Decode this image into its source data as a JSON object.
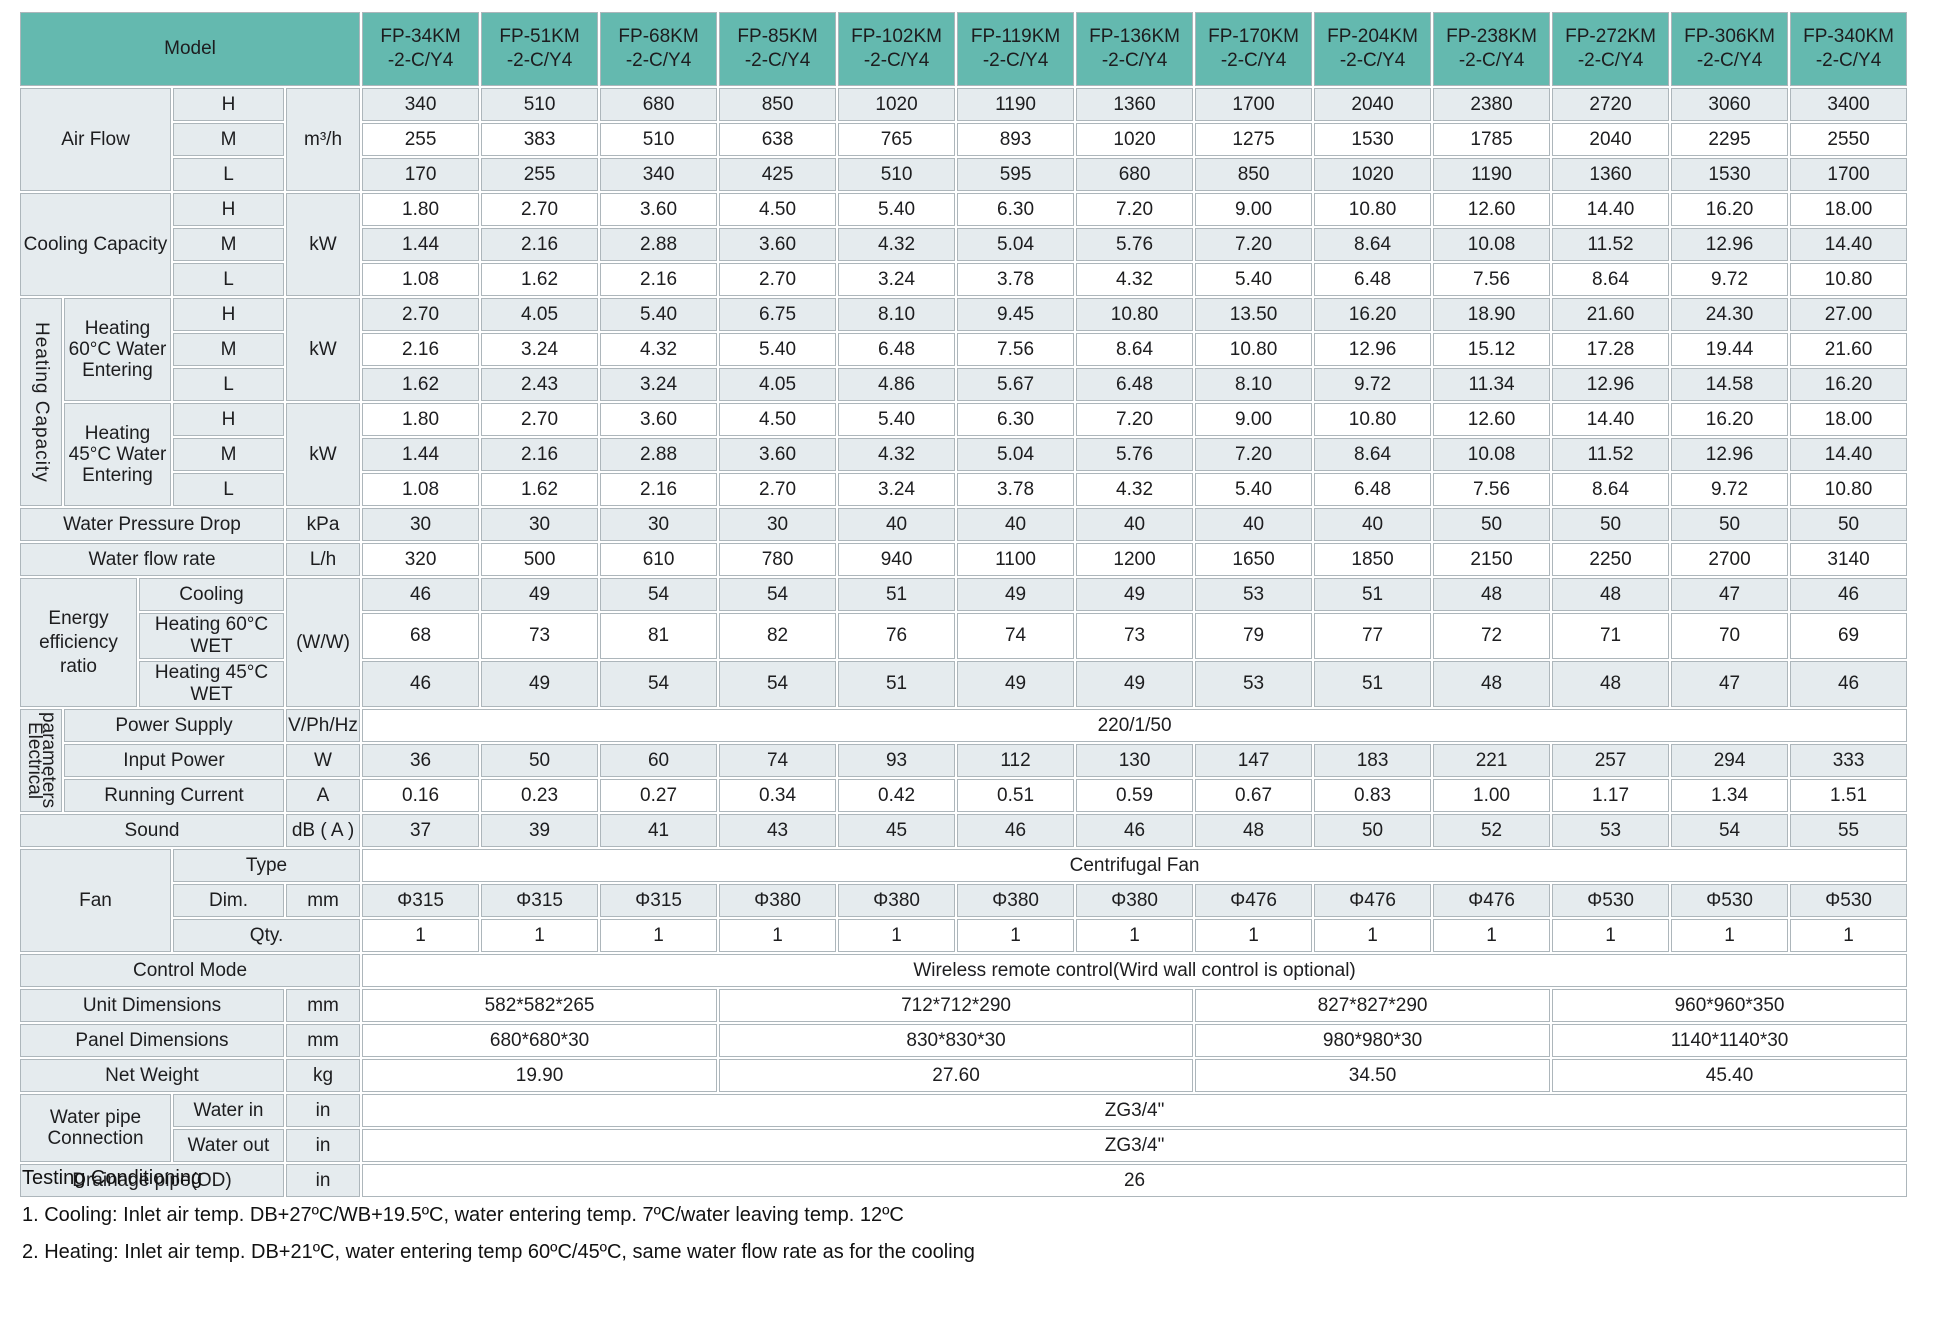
{
  "colors": {
    "header_teal": "#64b9af",
    "row_light": "#e5ebee",
    "row_white": "#ffffff",
    "grid_line": "#adb6bb",
    "text": "#1d1d1f"
  },
  "header": {
    "model_label": "Model",
    "model_suffix": "-2-C/Y4",
    "models": [
      "FP-34KM",
      "FP-51KM",
      "FP-68KM",
      "FP-85KM",
      "FP-102KM",
      "FP-119KM",
      "FP-136KM",
      "FP-170KM",
      "FP-204KM",
      "FP-238KM",
      "FP-272KM",
      "FP-306KM",
      "FP-340KM"
    ]
  },
  "rows": [
    {
      "bg": "a",
      "cells": [
        {
          "t": "Air Flow",
          "cs": 3,
          "rs": 3,
          "c": "lbl",
          "n": "air-flow-label"
        },
        {
          "t": "H",
          "c": "lbl"
        },
        {
          "t": "m³/h",
          "rs": 3,
          "c": "unit"
        },
        {
          "v": [
            "340",
            "510",
            "680",
            "850",
            "1020",
            "1190",
            "1360",
            "1700",
            "2040",
            "2380",
            "2720",
            "3060",
            "3400"
          ]
        }
      ]
    },
    {
      "bg": "b",
      "cells": [
        {
          "t": "M",
          "c": "lbl"
        },
        {
          "v": [
            "255",
            "383",
            "510",
            "638",
            "765",
            "893",
            "1020",
            "1275",
            "1530",
            "1785",
            "2040",
            "2295",
            "2550"
          ]
        }
      ]
    },
    {
      "bg": "a",
      "cells": [
        {
          "t": "L",
          "c": "lbl"
        },
        {
          "v": [
            "170",
            "255",
            "340",
            "425",
            "510",
            "595",
            "680",
            "850",
            "1020",
            "1190",
            "1360",
            "1530",
            "1700"
          ]
        }
      ]
    },
    {
      "bg": "b",
      "cells": [
        {
          "t": "Cooling Capacity",
          "cs": 3,
          "rs": 3,
          "c": "lbl lh",
          "n": "cooling-capacity-label"
        },
        {
          "t": "H",
          "c": "lbl"
        },
        {
          "t": "kW",
          "rs": 3,
          "c": "unit"
        },
        {
          "v": [
            "1.80",
            "2.70",
            "3.60",
            "4.50",
            "5.40",
            "6.30",
            "7.20",
            "9.00",
            "10.80",
            "12.60",
            "14.40",
            "16.20",
            "18.00"
          ]
        }
      ]
    },
    {
      "bg": "a",
      "cells": [
        {
          "t": "M",
          "c": "lbl"
        },
        {
          "v": [
            "1.44",
            "2.16",
            "2.88",
            "3.60",
            "4.32",
            "5.04",
            "5.76",
            "7.20",
            "8.64",
            "10.08",
            "11.52",
            "12.96",
            "14.40"
          ]
        }
      ]
    },
    {
      "bg": "b",
      "cells": [
        {
          "t": "L",
          "c": "lbl"
        },
        {
          "v": [
            "1.08",
            "1.62",
            "2.16",
            "2.70",
            "3.24",
            "3.78",
            "4.32",
            "5.40",
            "6.48",
            "7.56",
            "8.64",
            "9.72",
            "10.80"
          ]
        }
      ]
    },
    {
      "bg": "a",
      "cells": [
        {
          "t": "Heating Capacity",
          "rs": 6,
          "c": "lbl vertH",
          "n": "heating-capacity-vertical-label"
        },
        {
          "t": "Heating 60°C Water Entering",
          "cs": 2,
          "rs": 3,
          "c": "lbl lf wr",
          "n": "heating-60-label"
        },
        {
          "t": "H",
          "c": "lbl"
        },
        {
          "t": "kW",
          "rs": 3,
          "c": "unit"
        },
        {
          "v": [
            "2.70",
            "4.05",
            "5.40",
            "6.75",
            "8.10",
            "9.45",
            "10.80",
            "13.50",
            "16.20",
            "18.90",
            "21.60",
            "24.30",
            "27.00"
          ]
        }
      ]
    },
    {
      "bg": "b",
      "cells": [
        {
          "t": "M",
          "c": "lbl"
        },
        {
          "v": [
            "2.16",
            "3.24",
            "4.32",
            "5.40",
            "6.48",
            "7.56",
            "8.64",
            "10.80",
            "12.96",
            "15.12",
            "17.28",
            "19.44",
            "21.60"
          ]
        }
      ]
    },
    {
      "bg": "a",
      "cells": [
        {
          "t": "L",
          "c": "lbl"
        },
        {
          "v": [
            "1.62",
            "2.43",
            "3.24",
            "4.05",
            "4.86",
            "5.67",
            "6.48",
            "8.10",
            "9.72",
            "11.34",
            "12.96",
            "14.58",
            "16.20"
          ]
        }
      ]
    },
    {
      "bg": "b",
      "cells": [
        {
          "t": "Heating 45°C Water Entering",
          "cs": 2,
          "rs": 3,
          "c": "lbl lf wr",
          "n": "heating-45-label"
        },
        {
          "t": "H",
          "c": "lbl"
        },
        {
          "t": "kW",
          "rs": 3,
          "c": "unit"
        },
        {
          "v": [
            "1.80",
            "2.70",
            "3.60",
            "4.50",
            "5.40",
            "6.30",
            "7.20",
            "9.00",
            "10.80",
            "12.60",
            "14.40",
            "16.20",
            "18.00"
          ]
        }
      ]
    },
    {
      "bg": "a",
      "cells": [
        {
          "t": "M",
          "c": "lbl"
        },
        {
          "v": [
            "1.44",
            "2.16",
            "2.88",
            "3.60",
            "4.32",
            "5.04",
            "5.76",
            "7.20",
            "8.64",
            "10.08",
            "11.52",
            "12.96",
            "14.40"
          ]
        }
      ]
    },
    {
      "bg": "b",
      "cells": [
        {
          "t": "L",
          "c": "lbl"
        },
        {
          "v": [
            "1.08",
            "1.62",
            "2.16",
            "2.70",
            "3.24",
            "3.78",
            "4.32",
            "5.40",
            "6.48",
            "7.56",
            "8.64",
            "9.72",
            "10.80"
          ]
        }
      ]
    },
    {
      "bg": "a",
      "cells": [
        {
          "t": "Water Pressure Drop",
          "cs": 4,
          "c": "lbl",
          "n": "water-pressure-drop-label"
        },
        {
          "t": "kPa",
          "c": "unit"
        },
        {
          "v": [
            "30",
            "30",
            "30",
            "30",
            "40",
            "40",
            "40",
            "40",
            "40",
            "50",
            "50",
            "50",
            "50"
          ]
        }
      ]
    },
    {
      "bg": "b",
      "cells": [
        {
          "t": "Water flow rate",
          "cs": 4,
          "c": "lbl",
          "n": "water-flow-rate-label"
        },
        {
          "t": "L/h",
          "c": "unit"
        },
        {
          "v": [
            "320",
            "500",
            "610",
            "780",
            "940",
            "1100",
            "1200",
            "1650",
            "1850",
            "2150",
            "2250",
            "2700",
            "3140"
          ]
        }
      ]
    },
    {
      "bg": "a",
      "cells": [
        {
          "t": "Energy efficiency ratio",
          "cs": 2,
          "rs": 3,
          "c": "lbl lf lh",
          "n": "energy-efficiency-label"
        },
        {
          "t": "Cooling",
          "cs": 2,
          "c": "lbl lf sm"
        },
        {
          "t": "(W/W)",
          "rs": 3,
          "c": "unit"
        },
        {
          "v": [
            "46",
            "49",
            "54",
            "54",
            "51",
            "49",
            "49",
            "53",
            "51",
            "48",
            "48",
            "47",
            "46"
          ]
        }
      ]
    },
    {
      "bg": "b",
      "cells": [
        {
          "t": "Heating 60°C WET",
          "cs": 2,
          "c": "lbl lf sm"
        },
        {
          "v": [
            "68",
            "73",
            "81",
            "82",
            "76",
            "74",
            "73",
            "79",
            "77",
            "72",
            "71",
            "70",
            "69"
          ]
        }
      ]
    },
    {
      "bg": "a",
      "cells": [
        {
          "t": "Heating 45°C WET",
          "cs": 2,
          "c": "lbl lf sm"
        },
        {
          "v": [
            "46",
            "49",
            "54",
            "54",
            "51",
            "49",
            "49",
            "53",
            "51",
            "48",
            "48",
            "47",
            "46"
          ]
        }
      ]
    },
    {
      "bg": "b",
      "cells": [
        {
          "t": "Electrical parameters",
          "rs": 3,
          "c": "lbl vertE",
          "n": "electrical-parameters-vertical-label"
        },
        {
          "t": "Power Supply",
          "cs": 3,
          "c": "lbl lf",
          "n": "power-supply-label"
        },
        {
          "t": "V/Ph/Hz",
          "c": "unit sm"
        },
        {
          "t": "220/1/50",
          "cs": 13,
          "c": "val"
        }
      ]
    },
    {
      "bg": "a",
      "cells": [
        {
          "t": "Input Power",
          "cs": 3,
          "c": "lbl lf",
          "n": "input-power-label"
        },
        {
          "t": "W",
          "c": "unit"
        },
        {
          "v": [
            "36",
            "50",
            "60",
            "74",
            "93",
            "112",
            "130",
            "147",
            "183",
            "221",
            "257",
            "294",
            "333"
          ]
        }
      ]
    },
    {
      "bg": "b",
      "cells": [
        {
          "t": "Running Current",
          "cs": 3,
          "c": "lbl lf",
          "n": "running-current-label"
        },
        {
          "t": "A",
          "c": "unit"
        },
        {
          "v": [
            "0.16",
            "0.23",
            "0.27",
            "0.34",
            "0.42",
            "0.51",
            "0.59",
            "0.67",
            "0.83",
            "1.00",
            "1.17",
            "1.34",
            "1.51"
          ]
        }
      ]
    },
    {
      "bg": "a",
      "cells": [
        {
          "t": "Sound",
          "cs": 4,
          "c": "lbl",
          "n": "sound-label"
        },
        {
          "t": "dB ( A )",
          "c": "unit md"
        },
        {
          "v": [
            "37",
            "39",
            "41",
            "43",
            "45",
            "46",
            "46",
            "48",
            "50",
            "52",
            "53",
            "54",
            "55"
          ]
        }
      ]
    },
    {
      "bg": "b",
      "cells": [
        {
          "t": "Fan",
          "cs": 3,
          "rs": 3,
          "c": "lbl",
          "n": "fan-label"
        },
        {
          "t": "Type",
          "cs": 2,
          "c": "lbl"
        },
        {
          "t": "Centrifugal Fan",
          "cs": 13,
          "c": "val"
        }
      ]
    },
    {
      "bg": "a",
      "cells": [
        {
          "t": "Dim.",
          "c": "lbl"
        },
        {
          "t": "mm",
          "c": "unit"
        },
        {
          "v": [
            "Φ315",
            "Φ315",
            "Φ315",
            "Φ380",
            "Φ380",
            "Φ380",
            "Φ380",
            "Φ476",
            "Φ476",
            "Φ476",
            "Φ530",
            "Φ530",
            "Φ530"
          ]
        }
      ]
    },
    {
      "bg": "b",
      "cells": [
        {
          "t": "Qty.",
          "cs": 2,
          "c": "lbl"
        },
        {
          "v": [
            "1",
            "1",
            "1",
            "1",
            "1",
            "1",
            "1",
            "1",
            "1",
            "1",
            "1",
            "1",
            "1"
          ]
        }
      ]
    },
    {
      "bg": "a",
      "cells": [
        {
          "t": "Control Mode",
          "cs": 5,
          "c": "lbl",
          "n": "control-mode-label"
        },
        {
          "t": "Wireless remote control(Wird wall control is optional)",
          "cs": 13,
          "c": "val"
        }
      ]
    },
    {
      "bg": "b",
      "cells": [
        {
          "t": "Unit Dimensions",
          "cs": 4,
          "c": "lbl",
          "n": "unit-dimensions-label"
        },
        {
          "t": "mm",
          "c": "unit"
        },
        {
          "t": "582*582*265",
          "cs": 3,
          "c": "val"
        },
        {
          "t": "712*712*290",
          "cs": 4,
          "c": "val"
        },
        {
          "t": "827*827*290",
          "cs": 3,
          "c": "val"
        },
        {
          "t": "960*960*350",
          "cs": 3,
          "c": "val"
        }
      ]
    },
    {
      "bg": "a",
      "cells": [
        {
          "t": "Panel Dimensions",
          "cs": 4,
          "c": "lbl",
          "n": "panel-dimensions-label"
        },
        {
          "t": "mm",
          "c": "unit"
        },
        {
          "t": "680*680*30",
          "cs": 3,
          "c": "val"
        },
        {
          "t": "830*830*30",
          "cs": 4,
          "c": "val"
        },
        {
          "t": "980*980*30",
          "cs": 3,
          "c": "val"
        },
        {
          "t": "1140*1140*30",
          "cs": 3,
          "c": "val"
        }
      ]
    },
    {
      "bg": "b",
      "cells": [
        {
          "t": "Net Weight",
          "cs": 4,
          "c": "lbl",
          "n": "net-weight-label"
        },
        {
          "t": "kg",
          "c": "unit"
        },
        {
          "t": "19.90",
          "cs": 3,
          "c": "val"
        },
        {
          "t": "27.60",
          "cs": 4,
          "c": "val"
        },
        {
          "t": "34.50",
          "cs": 3,
          "c": "val"
        },
        {
          "t": "45.40",
          "cs": 3,
          "c": "val"
        }
      ]
    },
    {
      "bg": "a",
      "cells": [
        {
          "t": "Water pipe Connection",
          "cs": 3,
          "rs": 2,
          "c": "lbl lf wr",
          "n": "water-pipe-connection-label"
        },
        {
          "t": "Water in",
          "c": "lbl lf"
        },
        {
          "t": "in",
          "c": "unit"
        },
        {
          "t": "ZG3/4\"",
          "cs": 13,
          "c": "val"
        }
      ]
    },
    {
      "bg": "b",
      "cells": [
        {
          "t": "Water out",
          "c": "lbl lf"
        },
        {
          "t": "in",
          "c": "unit"
        },
        {
          "t": "ZG3/4\"",
          "cs": 13,
          "c": "val"
        }
      ]
    },
    {
      "bg": "a",
      "cells": [
        {
          "t": "Drainage pipe(OD)",
          "cs": 4,
          "c": "lbl",
          "n": "drainage-pipe-label"
        },
        {
          "t": "in",
          "c": "unit"
        },
        {
          "t": "26",
          "cs": 13,
          "c": "val"
        }
      ]
    }
  ],
  "footer": {
    "title": "Testing Conditioning",
    "note1": "1. Cooling: Inlet air temp. DB+27ºC/WB+19.5ºC, water entering temp. 7ºC/water leaving temp. 12ºC",
    "note2": "2. Heating: Inlet air temp. DB+21ºC, water entering temp 60ºC/45ºC, same water flow rate as for the cooling"
  }
}
